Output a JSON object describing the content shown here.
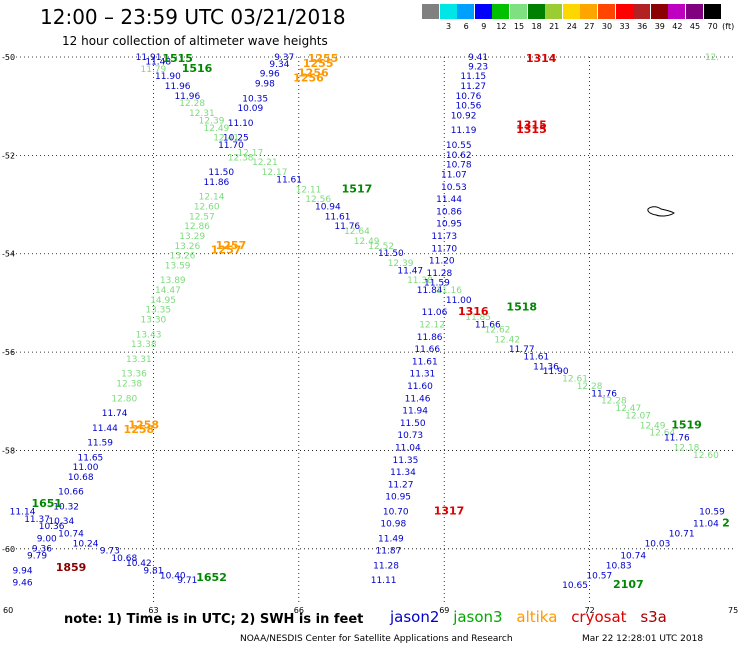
{
  "title": "12:00 – 23:59 UTC 03/21/2018",
  "subtitle": "12 hour collection of altimeter wave heights",
  "legend": {
    "unit_label": "(ft)",
    "items": [
      {
        "color": "#808080",
        "label": ""
      },
      {
        "color": "#00e5e5",
        "label": "3"
      },
      {
        "color": "#00a0ff",
        "label": "6"
      },
      {
        "color": "#0000ff",
        "label": "9"
      },
      {
        "color": "#00c000",
        "label": "12"
      },
      {
        "color": "#7fe07f",
        "label": "15"
      },
      {
        "color": "#008000",
        "label": "18"
      },
      {
        "color": "#9acd32",
        "label": "21"
      },
      {
        "color": "#ffd700",
        "label": "24"
      },
      {
        "color": "#ffa500",
        "label": "27"
      },
      {
        "color": "#ff4500",
        "label": "30"
      },
      {
        "color": "#ff0000",
        "label": "33"
      },
      {
        "color": "#b22222",
        "label": "36"
      },
      {
        "color": "#8b0000",
        "label": "39"
      },
      {
        "color": "#c000c0",
        "label": "42"
      },
      {
        "color": "#800080",
        "label": "45"
      },
      {
        "color": "#000000",
        "label": "70"
      }
    ]
  },
  "axes": {
    "lat_labels": [
      "-50",
      "-52",
      "-54",
      "-56",
      "-58",
      "-60"
    ],
    "lon_labels": [
      "60",
      "63",
      "66",
      "69",
      "72",
      "75"
    ]
  },
  "satellites": {
    "jason2": {
      "name": "jason2",
      "color": "#0000cc"
    },
    "jason3": {
      "name": "jason3",
      "color": "#7ddc7d"
    },
    "altika": {
      "name": "altika",
      "color": "#ff9900"
    },
    "cryosat": {
      "name": "cryosat",
      "color": "#dd0000"
    },
    "s3a": {
      "name": "s3a",
      "color": "#cc0000"
    }
  },
  "observations": [
    {
      "sat": "jason2",
      "lat": -50.05,
      "lon": 62.9,
      "v": "11.91"
    },
    {
      "sat": "jason2",
      "lat": -50.15,
      "lon": 63.1,
      "v": "11.48"
    },
    {
      "sat": "jason3",
      "lat": -50.3,
      "lon": 63.0,
      "v": "11.79"
    },
    {
      "sat": "jason2",
      "lat": -50.45,
      "lon": 63.3,
      "v": "11.90"
    },
    {
      "sat": "jason2",
      "lat": -50.65,
      "lon": 63.5,
      "v": "11.96"
    },
    {
      "sat": "jason2",
      "lat": -50.85,
      "lon": 63.7,
      "v": "11.96"
    },
    {
      "sat": "jason3",
      "lat": -51.0,
      "lon": 63.8,
      "v": "12.28"
    },
    {
      "sat": "jason3",
      "lat": -51.2,
      "lon": 64.0,
      "v": "12.31"
    },
    {
      "sat": "jason3",
      "lat": -51.35,
      "lon": 64.2,
      "v": "12.39"
    },
    {
      "sat": "jason3",
      "lat": -51.5,
      "lon": 64.3,
      "v": "12.49"
    },
    {
      "sat": "jason3",
      "lat": -51.7,
      "lon": 64.5,
      "v": "12.41"
    },
    {
      "sat": "jason2",
      "lat": -51.85,
      "lon": 64.6,
      "v": "11.70"
    },
    {
      "sat": "jason3",
      "lat": -52.1,
      "lon": 64.8,
      "v": "12.38"
    },
    {
      "sat": "jason3",
      "lat": -52.0,
      "lon": 65.0,
      "v": "12.17"
    },
    {
      "sat": "jason3",
      "lat": -52.2,
      "lon": 65.3,
      "v": "12.21"
    },
    {
      "sat": "jason3",
      "lat": -52.4,
      "lon": 65.5,
      "v": "12.17"
    },
    {
      "sat": "jason2",
      "lat": -52.55,
      "lon": 65.8,
      "v": "11.61"
    },
    {
      "sat": "jason3",
      "lat": -52.75,
      "lon": 66.2,
      "v": "12.11"
    },
    {
      "sat": "jason3",
      "lat": -52.95,
      "lon": 66.4,
      "v": "12.56"
    },
    {
      "sat": "jason2",
      "lat": -53.1,
      "lon": 66.6,
      "v": "10.94"
    },
    {
      "sat": "jason2",
      "lat": -53.3,
      "lon": 66.8,
      "v": "11.61"
    },
    {
      "sat": "jason2",
      "lat": -53.5,
      "lon": 67.0,
      "v": "11.76"
    },
    {
      "sat": "jason3",
      "lat": -53.6,
      "lon": 67.2,
      "v": "12.64"
    },
    {
      "sat": "jason3",
      "lat": -53.8,
      "lon": 67.4,
      "v": "12.49"
    },
    {
      "sat": "jason3",
      "lat": -53.9,
      "lon": 67.7,
      "v": "12.52"
    },
    {
      "sat": "jason2",
      "lat": -54.05,
      "lon": 67.9,
      "v": "11.50"
    },
    {
      "sat": "jason3",
      "lat": -54.25,
      "lon": 68.1,
      "v": "12.39"
    },
    {
      "sat": "jason2",
      "lat": -54.4,
      "lon": 68.3,
      "v": "11.47"
    },
    {
      "sat": "jason3",
      "lat": -54.6,
      "lon": 68.5,
      "v": "11.38"
    },
    {
      "sat": "jason2",
      "lat": -54.8,
      "lon": 68.7,
      "v": "11.84"
    },
    {
      "sat": "jason3",
      "lat": -54.8,
      "lon": 69.1,
      "v": "11.16"
    },
    {
      "sat": "jason2",
      "lat": -55.0,
      "lon": 69.3,
      "v": "11.00"
    },
    {
      "sat": "jason3",
      "lat": -55.35,
      "lon": 69.7,
      "v": "11.85"
    },
    {
      "sat": "jason2",
      "lat": -55.5,
      "lon": 69.9,
      "v": "11.66"
    },
    {
      "sat": "jason3",
      "lat": -55.6,
      "lon": 70.1,
      "v": "12.62"
    },
    {
      "sat": "jason3",
      "lat": -55.8,
      "lon": 70.3,
      "v": "12.42"
    },
    {
      "sat": "jason2",
      "lat": -56.0,
      "lon": 70.6,
      "v": "11.77"
    },
    {
      "sat": "jason2",
      "lat": -56.15,
      "lon": 70.9,
      "v": "11.61"
    },
    {
      "sat": "jason2",
      "lat": -56.35,
      "lon": 71.1,
      "v": "11.36"
    },
    {
      "sat": "jason2",
      "lat": -56.45,
      "lon": 71.3,
      "v": "11.90"
    },
    {
      "sat": "jason3",
      "lat": -56.6,
      "lon": 71.7,
      "v": "12.61"
    },
    {
      "sat": "jason3",
      "lat": -56.75,
      "lon": 72.0,
      "v": "12.28"
    },
    {
      "sat": "jason2",
      "lat": -56.9,
      "lon": 72.3,
      "v": "11.76"
    },
    {
      "sat": "jason3",
      "lat": -57.05,
      "lon": 72.5,
      "v": "12.28"
    },
    {
      "sat": "jason3",
      "lat": -57.2,
      "lon": 72.8,
      "v": "12.47"
    },
    {
      "sat": "jason3",
      "lat": -57.35,
      "lon": 73.0,
      "v": "12.07"
    },
    {
      "sat": "jason3",
      "lat": -57.55,
      "lon": 73.3,
      "v": "12.49"
    },
    {
      "sat": "jason3",
      "lat": -57.7,
      "lon": 73.5,
      "v": "12.64"
    },
    {
      "sat": "jason2",
      "lat": -57.8,
      "lon": 73.8,
      "v": "11.76"
    },
    {
      "sat": "jason3",
      "lat": -58.0,
      "lon": 74.0,
      "v": "12.18"
    },
    {
      "sat": "jason3",
      "lat": -58.15,
      "lon": 74.4,
      "v": "12.60"
    },
    {
      "sat": "jason2",
      "lat": -50.0,
      "lon": 65.7,
      "v": "9.37"
    },
    {
      "sat": "jason2",
      "lat": -50.2,
      "lon": 65.6,
      "v": "9.34"
    },
    {
      "sat": "jason2",
      "lat": -50.4,
      "lon": 65.4,
      "v": "9.96"
    },
    {
      "sat": "jason2",
      "lat": -50.6,
      "lon": 65.3,
      "v": "9.98"
    },
    {
      "sat": "jason2",
      "lat": -50.9,
      "lon": 65.1,
      "v": "10.35"
    },
    {
      "sat": "jason2",
      "lat": -51.1,
      "lon": 65.0,
      "v": "10.09"
    },
    {
      "sat": "jason2",
      "lat": -51.4,
      "lon": 64.8,
      "v": "11.10"
    },
    {
      "sat": "jason2",
      "lat": -51.7,
      "lon": 64.7,
      "v": "10.25"
    },
    {
      "sat": "jason2",
      "lat": -52.4,
      "lon": 64.4,
      "v": "11.50"
    },
    {
      "sat": "jason2",
      "lat": -52.6,
      "lon": 64.3,
      "v": "11.86"
    },
    {
      "sat": "jason3",
      "lat": -52.9,
      "lon": 64.2,
      "v": "12.14"
    },
    {
      "sat": "jason3",
      "lat": -53.1,
      "lon": 64.1,
      "v": "12.60"
    },
    {
      "sat": "jason3",
      "lat": -53.3,
      "lon": 64.0,
      "v": "12.57"
    },
    {
      "sat": "jason3",
      "lat": -53.5,
      "lon": 63.9,
      "v": "12.86"
    },
    {
      "sat": "jason3",
      "lat": -53.7,
      "lon": 63.8,
      "v": "13.29"
    },
    {
      "sat": "jason3",
      "lat": -53.9,
      "lon": 63.7,
      "v": "13.26"
    },
    {
      "sat": "jason3",
      "lat": -54.1,
      "lon": 63.6,
      "v": "13.26"
    },
    {
      "sat": "jason3",
      "lat": -54.3,
      "lon": 63.5,
      "v": "13.59"
    },
    {
      "sat": "jason3",
      "lat": -54.6,
      "lon": 63.4,
      "v": "13.89"
    },
    {
      "sat": "jason3",
      "lat": -54.8,
      "lon": 63.3,
      "v": "14.47"
    },
    {
      "sat": "jason3",
      "lat": -55.0,
      "lon": 63.2,
      "v": "14.95"
    },
    {
      "sat": "jason3",
      "lat": -55.2,
      "lon": 63.1,
      "v": "13.35"
    },
    {
      "sat": "jason3",
      "lat": -55.4,
      "lon": 63.0,
      "v": "13.30"
    },
    {
      "sat": "jason3",
      "lat": -55.7,
      "lon": 62.9,
      "v": "13.43"
    },
    {
      "sat": "jason3",
      "lat": -55.9,
      "lon": 62.8,
      "v": "13.38"
    },
    {
      "sat": "jason3",
      "lat": -56.2,
      "lon": 62.7,
      "v": "13.31"
    },
    {
      "sat": "jason3",
      "lat": -56.5,
      "lon": 62.6,
      "v": "13.36"
    },
    {
      "sat": "jason3",
      "lat": -56.7,
      "lon": 62.5,
      "v": "12.38"
    },
    {
      "sat": "jason3",
      "lat": -57.0,
      "lon": 62.4,
      "v": "12.80"
    },
    {
      "sat": "jason2",
      "lat": -57.3,
      "lon": 62.2,
      "v": "11.74"
    },
    {
      "sat": "jason2",
      "lat": -57.6,
      "lon": 62.0,
      "v": "11.44"
    },
    {
      "sat": "jason2",
      "lat": -57.9,
      "lon": 61.9,
      "v": "11.59"
    },
    {
      "sat": "jason2",
      "lat": -58.2,
      "lon": 61.7,
      "v": "11.65"
    },
    {
      "sat": "jason2",
      "lat": -58.4,
      "lon": 61.6,
      "v": "11.00"
    },
    {
      "sat": "jason2",
      "lat": -58.6,
      "lon": 61.5,
      "v": "10.68"
    },
    {
      "sat": "jason2",
      "lat": -58.9,
      "lon": 61.3,
      "v": "10.66"
    },
    {
      "sat": "jason2",
      "lat": -59.2,
      "lon": 61.2,
      "v": "10.32"
    },
    {
      "sat": "jason2",
      "lat": -59.3,
      "lon": 60.3,
      "v": "11.14"
    },
    {
      "sat": "jason2",
      "lat": -59.45,
      "lon": 60.6,
      "v": "11.37"
    },
    {
      "sat": "jason2",
      "lat": -59.5,
      "lon": 61.1,
      "v": "10.34"
    },
    {
      "sat": "jason2",
      "lat": -59.6,
      "lon": 60.9,
      "v": "10.36"
    },
    {
      "sat": "jason2",
      "lat": -59.75,
      "lon": 61.3,
      "v": "10.74"
    },
    {
      "sat": "jason2",
      "lat": -59.85,
      "lon": 60.8,
      "v": "9.00"
    },
    {
      "sat": "jason2",
      "lat": -59.95,
      "lon": 61.6,
      "v": "10.24"
    },
    {
      "sat": "jason2",
      "lat": -60.05,
      "lon": 60.7,
      "v": "9.36"
    },
    {
      "sat": "jason2",
      "lat": -60.1,
      "lon": 62.1,
      "v": "9.73"
    },
    {
      "sat": "jason2",
      "lat": -60.25,
      "lon": 62.4,
      "v": "10.68"
    },
    {
      "sat": "jason2",
      "lat": -60.2,
      "lon": 60.6,
      "v": "9.79"
    },
    {
      "sat": "jason2",
      "lat": -60.35,
      "lon": 62.7,
      "v": "10.42"
    },
    {
      "sat": "jason2",
      "lat": -60.5,
      "lon": 60.3,
      "v": "9.94"
    },
    {
      "sat": "jason2",
      "lat": -60.5,
      "lon": 63.0,
      "v": "9.81"
    },
    {
      "sat": "jason2",
      "lat": -60.6,
      "lon": 63.4,
      "v": "10.40"
    },
    {
      "sat": "jason2",
      "lat": -60.7,
      "lon": 63.7,
      "v": "9.71"
    },
    {
      "sat": "jason2",
      "lat": -60.75,
      "lon": 60.3,
      "v": "9.46"
    },
    {
      "sat": "jason2",
      "lat": -50.05,
      "lon": 69.7,
      "v": "9.41"
    },
    {
      "sat": "jason2",
      "lat": -50.25,
      "lon": 69.7,
      "v": "9.23"
    },
    {
      "sat": "jason2",
      "lat": -50.45,
      "lon": 69.6,
      "v": "11.15"
    },
    {
      "sat": "jason2",
      "lat": -50.65,
      "lon": 69.6,
      "v": "11.27"
    },
    {
      "sat": "jason2",
      "lat": -50.85,
      "lon": 69.5,
      "v": "10.76"
    },
    {
      "sat": "jason2",
      "lat": -51.05,
      "lon": 69.5,
      "v": "10.56"
    },
    {
      "sat": "jason2",
      "lat": -51.25,
      "lon": 69.4,
      "v": "10.92"
    },
    {
      "sat": "jason2",
      "lat": -51.55,
      "lon": 69.4,
      "v": "11.19"
    },
    {
      "sat": "jason2",
      "lat": -51.85,
      "lon": 69.3,
      "v": "10.55"
    },
    {
      "sat": "jason2",
      "lat": -52.05,
      "lon": 69.3,
      "v": "10.62"
    },
    {
      "sat": "jason2",
      "lat": -52.25,
      "lon": 69.3,
      "v": "10.78"
    },
    {
      "sat": "jason2",
      "lat": -52.45,
      "lon": 69.2,
      "v": "11.07"
    },
    {
      "sat": "jason2",
      "lat": -52.7,
      "lon": 69.2,
      "v": "10.53"
    },
    {
      "sat": "jason2",
      "lat": -52.95,
      "lon": 69.1,
      "v": "11.44"
    },
    {
      "sat": "jason2",
      "lat": -53.2,
      "lon": 69.1,
      "v": "10.86"
    },
    {
      "sat": "jason2",
      "lat": -53.45,
      "lon": 69.1,
      "v": "10.95"
    },
    {
      "sat": "jason2",
      "lat": -53.7,
      "lon": 69.0,
      "v": "11.73"
    },
    {
      "sat": "jason2",
      "lat": -53.95,
      "lon": 69.0,
      "v": "11.70"
    },
    {
      "sat": "jason2",
      "lat": -54.2,
      "lon": 68.95,
      "v": "11.20"
    },
    {
      "sat": "jason2",
      "lat": -54.45,
      "lon": 68.9,
      "v": "11.28"
    },
    {
      "sat": "jason2",
      "lat": -54.65,
      "lon": 68.85,
      "v": "11.59"
    },
    {
      "sat": "jason2",
      "lat": -55.25,
      "lon": 68.8,
      "v": "11.06"
    },
    {
      "sat": "jason3",
      "lat": -55.5,
      "lon": 68.75,
      "v": "12.12"
    },
    {
      "sat": "jason2",
      "lat": -55.75,
      "lon": 68.7,
      "v": "11.86"
    },
    {
      "sat": "jason2",
      "lat": -56.0,
      "lon": 68.65,
      "v": "11.66"
    },
    {
      "sat": "jason2",
      "lat": -56.25,
      "lon": 68.6,
      "v": "11.61"
    },
    {
      "sat": "jason2",
      "lat": -56.5,
      "lon": 68.55,
      "v": "11.31"
    },
    {
      "sat": "jason2",
      "lat": -56.75,
      "lon": 68.5,
      "v": "11.60"
    },
    {
      "sat": "jason2",
      "lat": -57.0,
      "lon": 68.45,
      "v": "11.46"
    },
    {
      "sat": "jason2",
      "lat": -57.25,
      "lon": 68.4,
      "v": "11.94"
    },
    {
      "sat": "jason2",
      "lat": -57.5,
      "lon": 68.35,
      "v": "11.50"
    },
    {
      "sat": "jason2",
      "lat": -57.75,
      "lon": 68.3,
      "v": "10.73"
    },
    {
      "sat": "jason2",
      "lat": -58.0,
      "lon": 68.25,
      "v": "11.04"
    },
    {
      "sat": "jason2",
      "lat": -58.25,
      "lon": 68.2,
      "v": "11.35"
    },
    {
      "sat": "jason2",
      "lat": -58.5,
      "lon": 68.15,
      "v": "11.34"
    },
    {
      "sat": "jason2",
      "lat": -58.75,
      "lon": 68.1,
      "v": "11.27"
    },
    {
      "sat": "jason2",
      "lat": -59.0,
      "lon": 68.05,
      "v": "10.95"
    },
    {
      "sat": "jason2",
      "lat": -59.3,
      "lon": 68.0,
      "v": "10.70"
    },
    {
      "sat": "jason2",
      "lat": -59.55,
      "lon": 67.95,
      "v": "10.98"
    },
    {
      "sat": "jason2",
      "lat": -59.85,
      "lon": 67.9,
      "v": "11.49"
    },
    {
      "sat": "jason2",
      "lat": -60.1,
      "lon": 67.85,
      "v": "11.87"
    },
    {
      "sat": "jason2",
      "lat": -60.4,
      "lon": 67.8,
      "v": "11.28"
    },
    {
      "sat": "jason2",
      "lat": -60.7,
      "lon": 67.75,
      "v": "11.11"
    },
    {
      "sat": "jason2",
      "lat": -59.3,
      "lon": 75.0,
      "v": "10.59"
    },
    {
      "sat": "jason2",
      "lat": -59.55,
      "lon": 74.4,
      "v": "11.04"
    },
    {
      "sat": "jason2",
      "lat": -59.75,
      "lon": 73.9,
      "v": "10.71"
    },
    {
      "sat": "jason2",
      "lat": -59.95,
      "lon": 73.4,
      "v": "10.03"
    },
    {
      "sat": "jason2",
      "lat": -60.2,
      "lon": 72.9,
      "v": "10.74"
    },
    {
      "sat": "jason2",
      "lat": -60.4,
      "lon": 72.6,
      "v": "10.83"
    },
    {
      "sat": "jason2",
      "lat": -60.6,
      "lon": 72.2,
      "v": "10.57"
    },
    {
      "sat": "jason2",
      "lat": -60.8,
      "lon": 71.7,
      "v": "10.65"
    }
  ],
  "time_marks": [
    {
      "sat": "jason3",
      "lat": -50.0,
      "lon": 63.5,
      "v": "1515"
    },
    {
      "sat": "jason3",
      "lat": -50.3,
      "lon": 63.9,
      "v": "1516"
    },
    {
      "sat": "jason3",
      "lat": -52.75,
      "lon": 67.2,
      "v": "1517"
    },
    {
      "sat": "jason3",
      "lat": -55.15,
      "lon": 70.6,
      "v": "1518"
    },
    {
      "sat": "jason3",
      "lat": -57.55,
      "lon": 74.0,
      "v": "1519"
    },
    {
      "sat": "jason3",
      "lat": -59.15,
      "lon": 60.8,
      "v": "1651"
    },
    {
      "sat": "jason3",
      "lat": -60.65,
      "lon": 64.2,
      "v": "1652"
    },
    {
      "sat": "jason3",
      "lat": -60.8,
      "lon": 72.8,
      "v": "2107"
    },
    {
      "sat": "jason3",
      "lat": -59.55,
      "lon": 75.0,
      "v": "2"
    },
    {
      "sat": "altika",
      "lat": -50.0,
      "lon": 66.5,
      "v": "1255"
    },
    {
      "sat": "altika",
      "lat": -50.2,
      "lon": 66.4,
      "v": "1255"
    },
    {
      "sat": "altika",
      "lat": -50.4,
      "lon": 66.3,
      "v": "1256"
    },
    {
      "sat": "altika",
      "lat": -50.5,
      "lon": 66.2,
      "v": "1256"
    },
    {
      "sat": "altika",
      "lat": -53.9,
      "lon": 64.6,
      "v": "1257"
    },
    {
      "sat": "altika",
      "lat": -54.0,
      "lon": 64.5,
      "v": "1257"
    },
    {
      "sat": "altika",
      "lat": -57.55,
      "lon": 62.8,
      "v": "1258"
    },
    {
      "sat": "altika",
      "lat": -57.65,
      "lon": 62.7,
      "v": "1258"
    },
    {
      "sat": "cryosat",
      "lat": -50.05,
      "lon": 71.0,
      "v": "1314"
    },
    {
      "sat": "cryosat",
      "lat": -51.45,
      "lon": 70.8,
      "v": "1315"
    },
    {
      "sat": "cryosat",
      "lat": -51.55,
      "lon": 70.8,
      "v": "1315"
    },
    {
      "sat": "cryosat",
      "lat": -55.25,
      "lon": 69.6,
      "v": "1316"
    },
    {
      "sat": "cryosat",
      "lat": -59.3,
      "lon": 69.1,
      "v": "1317"
    },
    {
      "sat": "s3a",
      "lat": -60.45,
      "lon": 61.3,
      "v": "1859"
    }
  ],
  "extra_labels": [
    {
      "sat": "jason3",
      "lat": -50.0,
      "lon": 74.7,
      "v": "12."
    }
  ],
  "footer": {
    "note": "note: 1) Time is in UTC; 2) SWH is in feet",
    "credit": "NOAA/NESDIS Center for Satellite Applications and Research",
    "generated": "Mar 22 12:28:01 UTC 2018"
  }
}
